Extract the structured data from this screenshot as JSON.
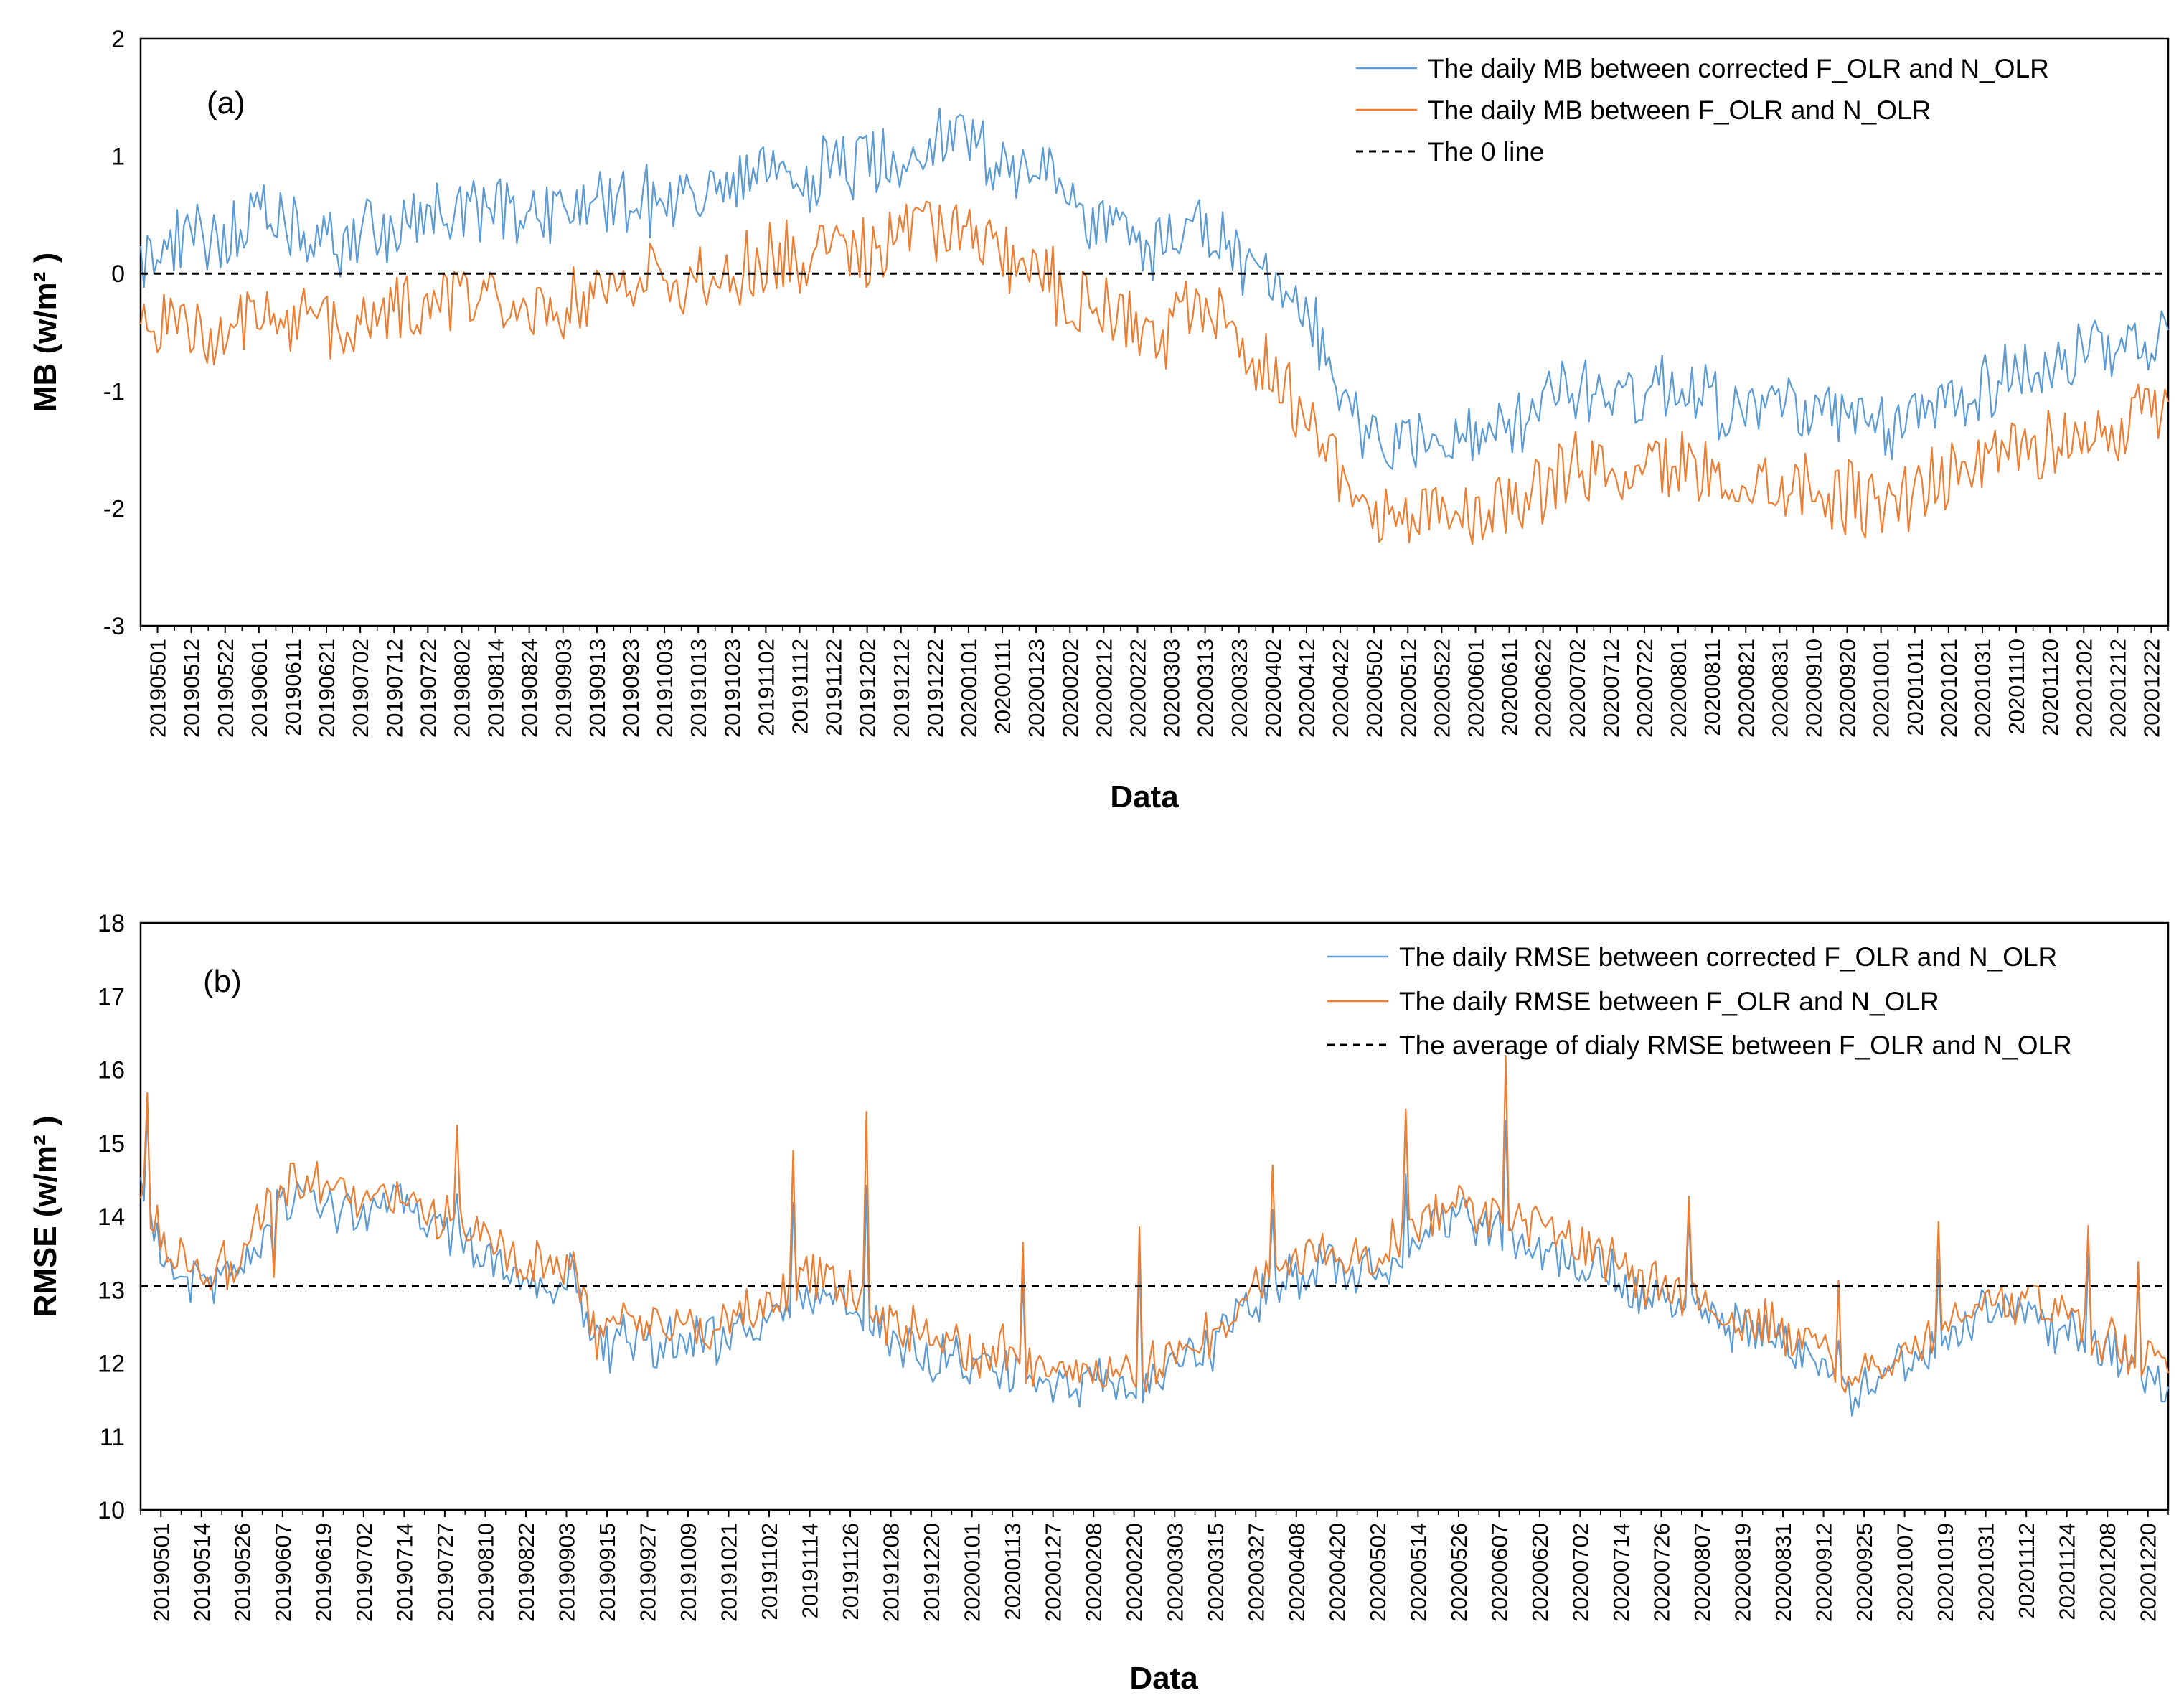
{
  "chart_data": [
    {
      "type": "line",
      "panel_label": "(a)",
      "ylabel": "MB (w/m² )",
      "xlabel": "Data",
      "ylim": [
        -3,
        2
      ],
      "yticks": [
        "-3",
        "-2",
        "-1",
        "0",
        "1",
        "2"
      ],
      "xtick_labels": [
        "20190501",
        "20190512",
        "20190522",
        "20190601",
        "20190611",
        "20190621",
        "20190702",
        "20190712",
        "20190722",
        "20190802",
        "20190814",
        "20190824",
        "20190903",
        "20190913",
        "20190923",
        "20191003",
        "20191013",
        "20191023",
        "20191102",
        "20191112",
        "20191122",
        "20191202",
        "20191212",
        "20191222",
        "20200101",
        "20200111",
        "20200123",
        "20200202",
        "20200212",
        "20200222",
        "20200303",
        "20200313",
        "20200323",
        "20200402",
        "20200412",
        "20200422",
        "20200502",
        "20200512",
        "20200522",
        "20200601",
        "20200611",
        "20200622",
        "20200702",
        "20200712",
        "20200722",
        "20200801",
        "20200811",
        "20200821",
        "20200831",
        "20200910",
        "20200920",
        "20201001",
        "20201011",
        "20201021",
        "20201031",
        "20201110",
        "20201120",
        "20201202",
        "20201212",
        "20201222"
      ],
      "series": [
        {
          "name": "The daily MB between corrected F_OLR and N_OLR",
          "color": "#5b9bd5",
          "values": [
            0.1,
            0.25,
            0.3,
            0.4,
            0.45,
            0.3,
            0.25,
            0.35,
            0.4,
            0.45,
            0.5,
            0.55,
            0.55,
            0.55,
            0.6,
            0.65,
            0.65,
            0.6,
            0.7,
            0.75,
            0.8,
            0.85,
            0.9,
            0.95,
            1.0,
            1.2,
            1.15,
            1.0,
            0.9,
            0.7,
            0.5,
            0.35,
            0.2,
            0.45,
            0.3,
            0.05,
            -0.2,
            -0.5,
            -1.0,
            -1.4,
            -1.45,
            -1.3,
            -1.45,
            -1.3,
            -1.2,
            -1.0,
            -0.95,
            -1.05,
            -0.95,
            -0.95,
            -1.1,
            -1.15,
            -1.1,
            -1.2,
            -1.3,
            -1.35,
            -1.25,
            -1.05,
            -0.95,
            -0.85,
            -0.8,
            -0.75,
            -0.7,
            -0.6,
            -0.5
          ],
          "noise": 0.28
        },
        {
          "name": "The daily MB between F_OLR and N_OLR",
          "color": "#ed7d31",
          "values": [
            -0.5,
            -0.45,
            -0.5,
            -0.45,
            -0.35,
            -0.4,
            -0.45,
            -0.4,
            -0.35,
            -0.25,
            -0.2,
            -0.2,
            -0.25,
            -0.25,
            -0.2,
            -0.1,
            -0.05,
            -0.1,
            0.0,
            0.05,
            0.1,
            0.15,
            0.2,
            0.2,
            0.25,
            0.4,
            0.35,
            0.2,
            0.05,
            -0.15,
            -0.3,
            -0.45,
            -0.6,
            -0.3,
            -0.45,
            -0.65,
            -0.95,
            -1.3,
            -1.7,
            -2.0,
            -2.1,
            -1.95,
            -2.1,
            -1.95,
            -1.85,
            -1.7,
            -1.65,
            -1.75,
            -1.65,
            -1.65,
            -1.75,
            -1.8,
            -1.75,
            -1.85,
            -1.9,
            -1.95,
            -1.85,
            -1.7,
            -1.6,
            -1.5,
            -1.45,
            -1.4,
            -1.35,
            -1.25,
            -1.15
          ],
          "noise": 0.28
        },
        {
          "name": "The 0 line",
          "color": "#000000",
          "style": "dashed",
          "constant": 0
        }
      ]
    },
    {
      "type": "line",
      "panel_label": "(b)",
      "ylabel": "RMSE (w/m² )",
      "xlabel": "Data",
      "ylim": [
        10,
        18
      ],
      "yticks": [
        "10",
        "11",
        "12",
        "13",
        "14",
        "15",
        "16",
        "17",
        "18"
      ],
      "xtick_labels": [
        "20190501",
        "20190514",
        "20190526",
        "20190607",
        "20190619",
        "20190702",
        "20190714",
        "20190727",
        "20190810",
        "20190822",
        "20190903",
        "20190915",
        "20190927",
        "20191009",
        "20191021",
        "20191102",
        "20191114",
        "20191126",
        "20191208",
        "20191220",
        "20200101",
        "20200113",
        "20200127",
        "20200208",
        "20200220",
        "20200303",
        "20200315",
        "20200327",
        "20200408",
        "20200420",
        "20200502",
        "20200514",
        "20200526",
        "20200607",
        "20200620",
        "20200702",
        "20200714",
        "20200726",
        "20200807",
        "20200819",
        "20200831",
        "20200912",
        "20200925",
        "20201007",
        "20201019",
        "20201031",
        "20201112",
        "20201124",
        "20201208",
        "20201220"
      ],
      "series": [
        {
          "name": "The daily RMSE between corrected F_OLR and N_OLR",
          "color": "#5b9bd5",
          "values": [
            14.2,
            13.4,
            13.2,
            13.0,
            13.2,
            13.6,
            14.1,
            14.3,
            14.2,
            14.1,
            14.0,
            14.2,
            14.0,
            13.8,
            13.7,
            13.5,
            13.3,
            13.1,
            13.1,
            13.2,
            12.2,
            12.2,
            12.3,
            12.3,
            12.3,
            12.3,
            12.4,
            12.5,
            12.7,
            12.9,
            13.0,
            12.8,
            12.5,
            12.3,
            12.2,
            12.1,
            12.0,
            11.9,
            12.0,
            11.8,
            11.7,
            11.7,
            11.7,
            11.6,
            11.7,
            11.9,
            12.0,
            12.2,
            12.6,
            12.9,
            13.1,
            13.2,
            13.4,
            13.3,
            13.3,
            13.4,
            13.7,
            13.8,
            14.0,
            13.8,
            13.7,
            13.6,
            13.6,
            13.4,
            13.3,
            13.1,
            12.9,
            12.8,
            12.7,
            12.6,
            12.5,
            12.4,
            12.3,
            12.1,
            11.8,
            11.6,
            11.8,
            12.0,
            12.1,
            12.3,
            12.5,
            12.7,
            12.7,
            12.6,
            12.5,
            12.4,
            12.2,
            12.0,
            11.8,
            11.6
          ],
          "noise": 0.3
        },
        {
          "name": "The daily RMSE between F_OLR and N_OLR",
          "color": "#ed7d31",
          "values": [
            14.4,
            13.6,
            13.4,
            13.2,
            13.4,
            13.8,
            14.3,
            14.5,
            14.4,
            14.3,
            14.2,
            14.4,
            14.2,
            14.0,
            13.9,
            13.7,
            13.5,
            13.3,
            13.3,
            13.4,
            12.4,
            12.4,
            12.5,
            12.5,
            12.5,
            12.5,
            12.6,
            12.7,
            12.9,
            13.1,
            13.2,
            13.0,
            12.7,
            12.5,
            12.4,
            12.3,
            12.2,
            12.1,
            12.2,
            12.0,
            11.9,
            11.9,
            11.9,
            11.8,
            11.9,
            12.1,
            12.2,
            12.4,
            12.8,
            13.1,
            13.3,
            13.4,
            13.6,
            13.5,
            13.5,
            13.6,
            13.9,
            14.0,
            14.2,
            14.0,
            13.9,
            13.8,
            13.8,
            13.6,
            13.5,
            13.3,
            13.1,
            13.0,
            12.9,
            12.8,
            12.7,
            12.6,
            12.5,
            12.3,
            12.0,
            11.8,
            12.0,
            12.2,
            12.3,
            12.5,
            12.7,
            12.9,
            12.9,
            12.8,
            12.7,
            12.6,
            12.4,
            12.2,
            12.0,
            11.8
          ],
          "noise": 0.3
        },
        {
          "name": "The average of dialy RMSE between F_OLR and N_OLR",
          "color": "#000000",
          "style": "dashed",
          "constant": 13.05
        }
      ]
    }
  ]
}
